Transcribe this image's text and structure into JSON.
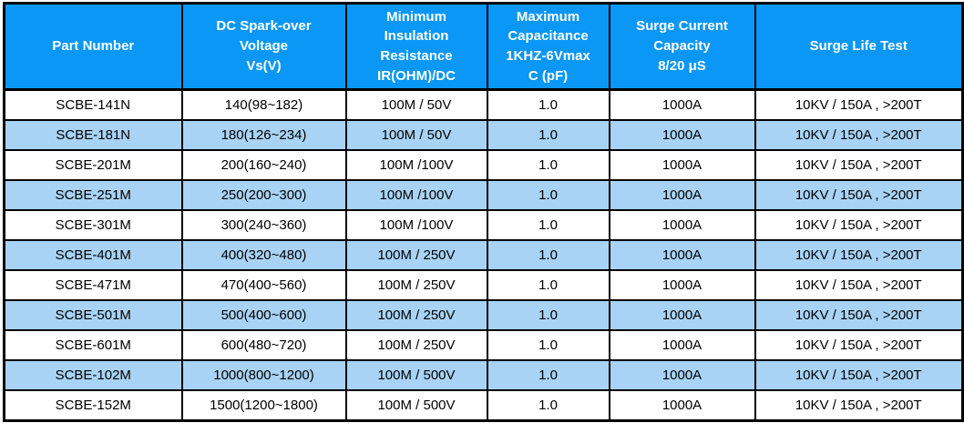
{
  "table": {
    "headers": [
      "Part Number",
      "DC Spark-over\nVoltage\nVs(V)",
      "Minimum\nInsulation\nResistance\nIR(OHM)/DC",
      "Maximum\nCapacitance\n1KHZ-6Vmax\nC (pF)",
      "Surge Current\nCapacity\n8/20 μS",
      "Surge Life Test"
    ],
    "rows": [
      [
        "SCBE-141N",
        "140(98~182)",
        "100M / 50V",
        "1.0",
        "1000A",
        "10KV / 150A , >200T"
      ],
      [
        "SCBE-181N",
        "180(126~234)",
        "100M / 50V",
        "1.0",
        "1000A",
        "10KV / 150A , >200T"
      ],
      [
        "SCBE-201M",
        "200(160~240)",
        "100M /100V",
        "1.0",
        "1000A",
        "10KV / 150A , >200T"
      ],
      [
        "SCBE-251M",
        "250(200~300)",
        "100M /100V",
        "1.0",
        "1000A",
        "10KV / 150A , >200T"
      ],
      [
        "SCBE-301M",
        "300(240~360)",
        "100M /100V",
        "1.0",
        "1000A",
        "10KV / 150A , >200T"
      ],
      [
        "SCBE-401M",
        "400(320~480)",
        "100M / 250V",
        "1.0",
        "1000A",
        "10KV / 150A , >200T"
      ],
      [
        "SCBE-471M",
        "470(400~560)",
        "100M / 250V",
        "1.0",
        "1000A",
        "10KV / 150A , >200T"
      ],
      [
        "SCBE-501M",
        "500(400~600)",
        "100M / 250V",
        "1.0",
        "1000A",
        "10KV / 150A , >200T"
      ],
      [
        "SCBE-601M",
        "600(480~720)",
        "100M / 250V",
        "1.0",
        "1000A",
        "10KV / 150A , >200T"
      ],
      [
        "SCBE-102M",
        "1000(800~1200)",
        "100M / 500V",
        "1.0",
        "1000A",
        "10KV / 150A , >200T"
      ],
      [
        "SCBE-152M",
        "1500(1200~1800)",
        "100M / 500V",
        "1.0",
        "1000A",
        "10KV / 150A , >200T"
      ]
    ]
  },
  "colors": {
    "header_bg": "#0a97f5",
    "header_text": "#ffffff",
    "row_bg": "#ffffff",
    "row_alt_bg": "#a8d3f5",
    "border": "#000000",
    "body_text": "#000000"
  }
}
